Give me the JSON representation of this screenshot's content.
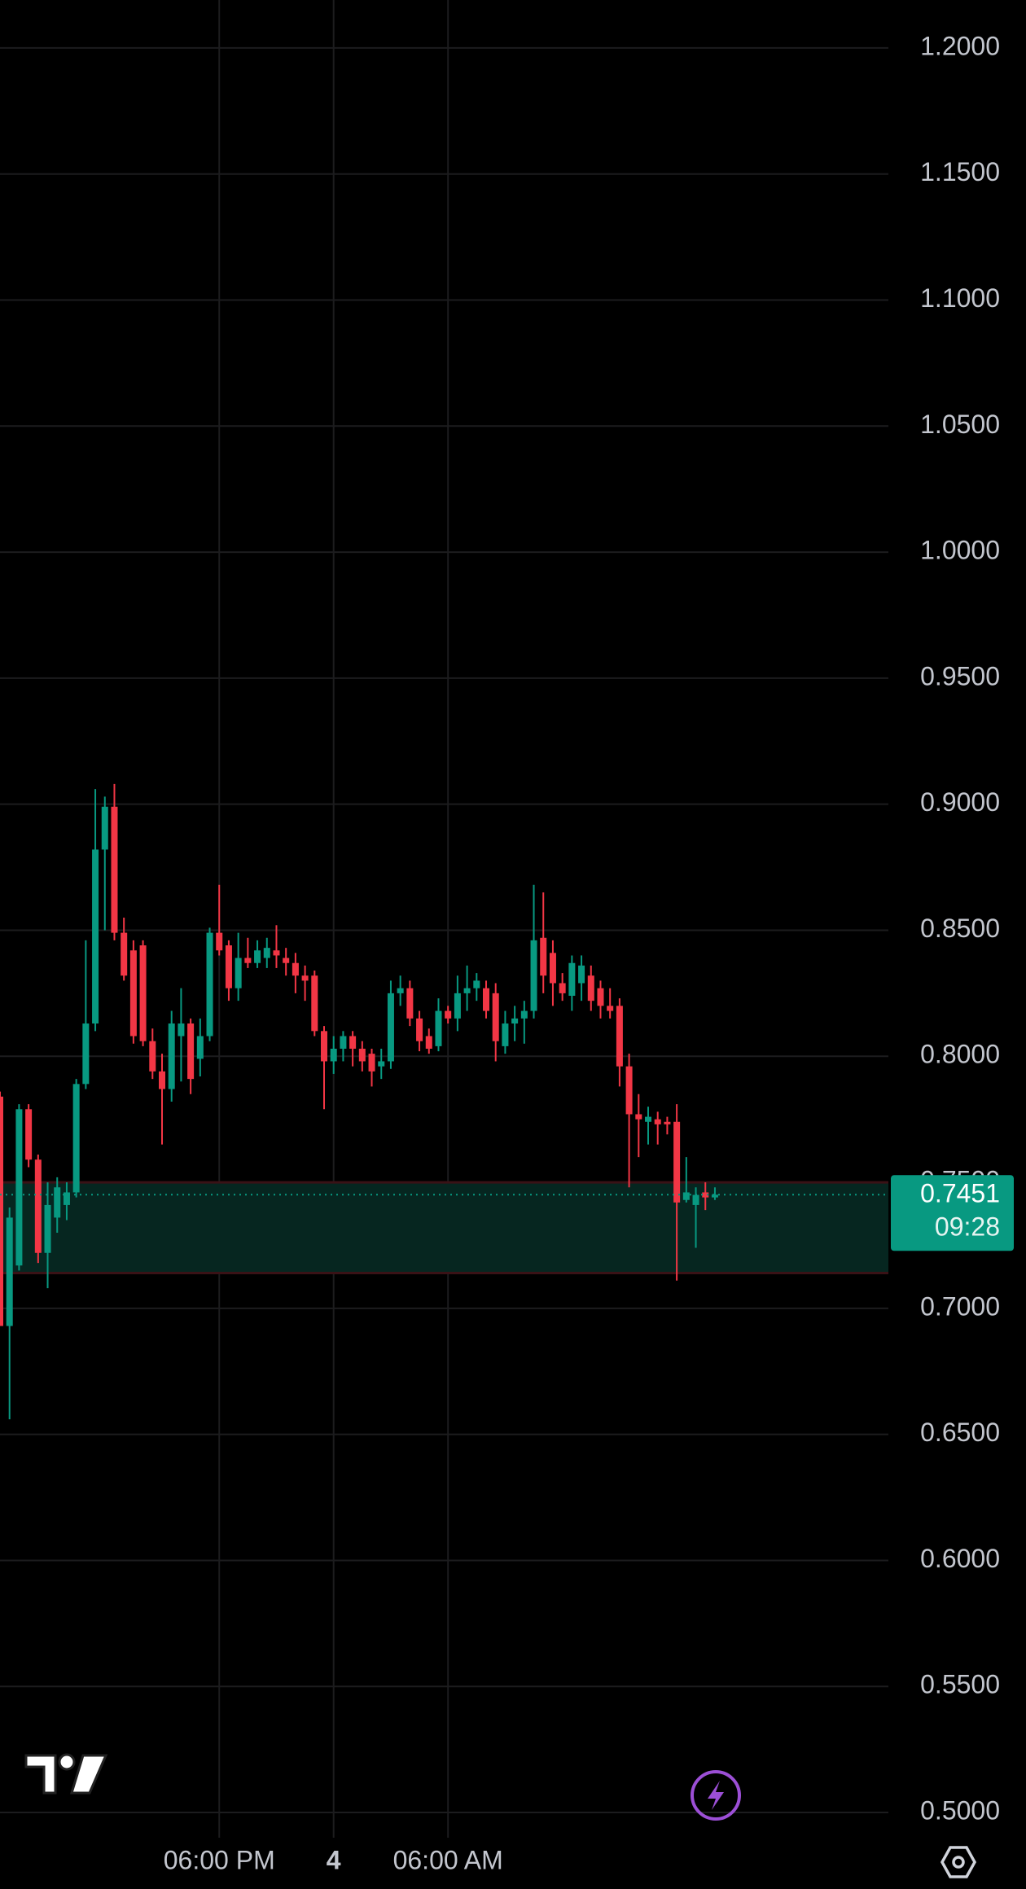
{
  "chart_data": {
    "type": "candlestick",
    "x": [
      6.5,
      7,
      7.5,
      8,
      8.5,
      9,
      9.5,
      10,
      10.5,
      11,
      11.5,
      12,
      12.5,
      13,
      13.5,
      14,
      14.5,
      15,
      15.5,
      16,
      16.5,
      17,
      17.5,
      18,
      18.5,
      19,
      19.5,
      20,
      20.5,
      21,
      21.5,
      22,
      22.5,
      23,
      23.5,
      24,
      24.5,
      25,
      25.5,
      26,
      26.5,
      27,
      27.5,
      28,
      28.5,
      29,
      29.5,
      30,
      30.5,
      31,
      31.5,
      32,
      32.5,
      33,
      33.5,
      34,
      34.5,
      35,
      35.5,
      36,
      36.5,
      37,
      37.5,
      38,
      38.5,
      39,
      39.5,
      40,
      40.5,
      41,
      41.5,
      42,
      42.5,
      43,
      43.5,
      44
    ],
    "open": [
      0.784,
      0.693,
      0.717,
      0.779,
      0.759,
      0.722,
      0.736,
      0.741,
      0.746,
      0.789,
      0.813,
      0.882,
      0.899,
      0.849,
      0.842,
      0.844,
      0.806,
      0.794,
      0.787,
      0.808,
      0.813,
      0.799,
      0.808,
      0.849,
      0.844,
      0.827,
      0.839,
      0.837,
      0.839,
      0.842,
      0.839,
      0.837,
      0.832,
      0.832,
      0.81,
      0.798,
      0.803,
      0.808,
      0.803,
      0.801,
      0.796,
      0.798,
      0.825,
      0.827,
      0.815,
      0.808,
      0.804,
      0.818,
      0.815,
      0.825,
      0.827,
      0.827,
      0.825,
      0.804,
      0.813,
      0.815,
      0.818,
      0.847,
      0.841,
      0.829,
      0.824,
      0.829,
      0.832,
      0.827,
      0.82,
      0.82,
      0.796,
      0.777,
      0.774,
      0.775,
      0.774,
      0.774,
      0.743,
      0.741,
      0.746,
      0.744
    ],
    "high": [
      0.786,
      0.74,
      0.781,
      0.781,
      0.761,
      0.75,
      0.752,
      0.75,
      0.791,
      0.846,
      0.906,
      0.903,
      0.908,
      0.855,
      0.846,
      0.846,
      0.811,
      0.801,
      0.818,
      0.827,
      0.815,
      0.815,
      0.851,
      0.868,
      0.846,
      0.849,
      0.847,
      0.846,
      0.847,
      0.852,
      0.843,
      0.841,
      0.836,
      0.834,
      0.812,
      0.808,
      0.81,
      0.81,
      0.806,
      0.803,
      0.803,
      0.83,
      0.832,
      0.83,
      0.818,
      0.811,
      0.823,
      0.82,
      0.832,
      0.836,
      0.833,
      0.83,
      0.829,
      0.818,
      0.82,
      0.822,
      0.868,
      0.865,
      0.846,
      0.833,
      0.84,
      0.84,
      0.836,
      0.83,
      0.827,
      0.823,
      0.801,
      0.785,
      0.78,
      0.778,
      0.776,
      0.781,
      0.76,
      0.748,
      0.75,
      0.748
    ],
    "low": [
      0.693,
      0.656,
      0.715,
      0.756,
      0.718,
      0.708,
      0.73,
      0.735,
      0.744,
      0.787,
      0.81,
      0.85,
      0.846,
      0.83,
      0.805,
      0.804,
      0.791,
      0.765,
      0.782,
      0.79,
      0.785,
      0.792,
      0.806,
      0.84,
      0.822,
      0.822,
      0.835,
      0.835,
      0.835,
      0.835,
      0.832,
      0.825,
      0.822,
      0.808,
      0.779,
      0.793,
      0.798,
      0.796,
      0.794,
      0.788,
      0.791,
      0.795,
      0.82,
      0.812,
      0.802,
      0.801,
      0.802,
      0.813,
      0.81,
      0.818,
      0.822,
      0.815,
      0.798,
      0.801,
      0.806,
      0.805,
      0.815,
      0.825,
      0.82,
      0.822,
      0.818,
      0.822,
      0.818,
      0.815,
      0.815,
      0.788,
      0.748,
      0.76,
      0.765,
      0.765,
      0.769,
      0.711,
      0.742,
      0.724,
      0.739,
      0.743
    ],
    "close": [
      0.693,
      0.736,
      0.779,
      0.759,
      0.722,
      0.741,
      0.748,
      0.746,
      0.789,
      0.813,
      0.882,
      0.899,
      0.849,
      0.832,
      0.808,
      0.806,
      0.794,
      0.787,
      0.813,
      0.813,
      0.791,
      0.808,
      0.849,
      0.842,
      0.827,
      0.839,
      0.837,
      0.842,
      0.843,
      0.84,
      0.837,
      0.832,
      0.83,
      0.81,
      0.798,
      0.803,
      0.808,
      0.803,
      0.798,
      0.794,
      0.798,
      0.825,
      0.827,
      0.815,
      0.806,
      0.803,
      0.818,
      0.815,
      0.825,
      0.827,
      0.83,
      0.818,
      0.806,
      0.813,
      0.815,
      0.818,
      0.846,
      0.832,
      0.829,
      0.825,
      0.837,
      0.836,
      0.822,
      0.82,
      0.818,
      0.796,
      0.777,
      0.775,
      0.776,
      0.773,
      0.773,
      0.742,
      0.746,
      0.745,
      0.744,
      0.7451
    ],
    "up_color": "#089981",
    "down_color": "#f23645",
    "zone": [
      0.714,
      0.75
    ],
    "zone_color": "#062620",
    "last_price": 0.7451,
    "countdown": "09:28",
    "xlim": [
      6.5,
      53.1
    ],
    "xticks": [
      {
        "value": 18,
        "label": "06:00 PM"
      },
      {
        "value": 24,
        "label": "4"
      },
      {
        "value": 30,
        "label": "06:00 AM"
      }
    ],
    "ylim": [
      0.49,
      1.22
    ],
    "yticks": [
      {
        "value": 0.5,
        "label": "0.5000"
      },
      {
        "value": 0.55,
        "label": "0.5500"
      },
      {
        "value": 0.6,
        "label": "0.6000"
      },
      {
        "value": 0.65,
        "label": "0.6500"
      },
      {
        "value": 0.7,
        "label": "0.7000"
      },
      {
        "value": 0.75,
        "label": "0.7500"
      },
      {
        "value": 0.8,
        "label": "0.8000"
      },
      {
        "value": 0.85,
        "label": "0.8500"
      },
      {
        "value": 0.9,
        "label": "0.9000"
      },
      {
        "value": 0.95,
        "label": "0.9500"
      },
      {
        "value": 1.0,
        "label": "1.0000"
      },
      {
        "value": 1.05,
        "label": "1.0500"
      },
      {
        "value": 1.1,
        "label": "1.1000"
      },
      {
        "value": 1.15,
        "label": "1.1500"
      },
      {
        "value": 1.2,
        "label": "1.2000"
      }
    ],
    "grid": true
  }
}
